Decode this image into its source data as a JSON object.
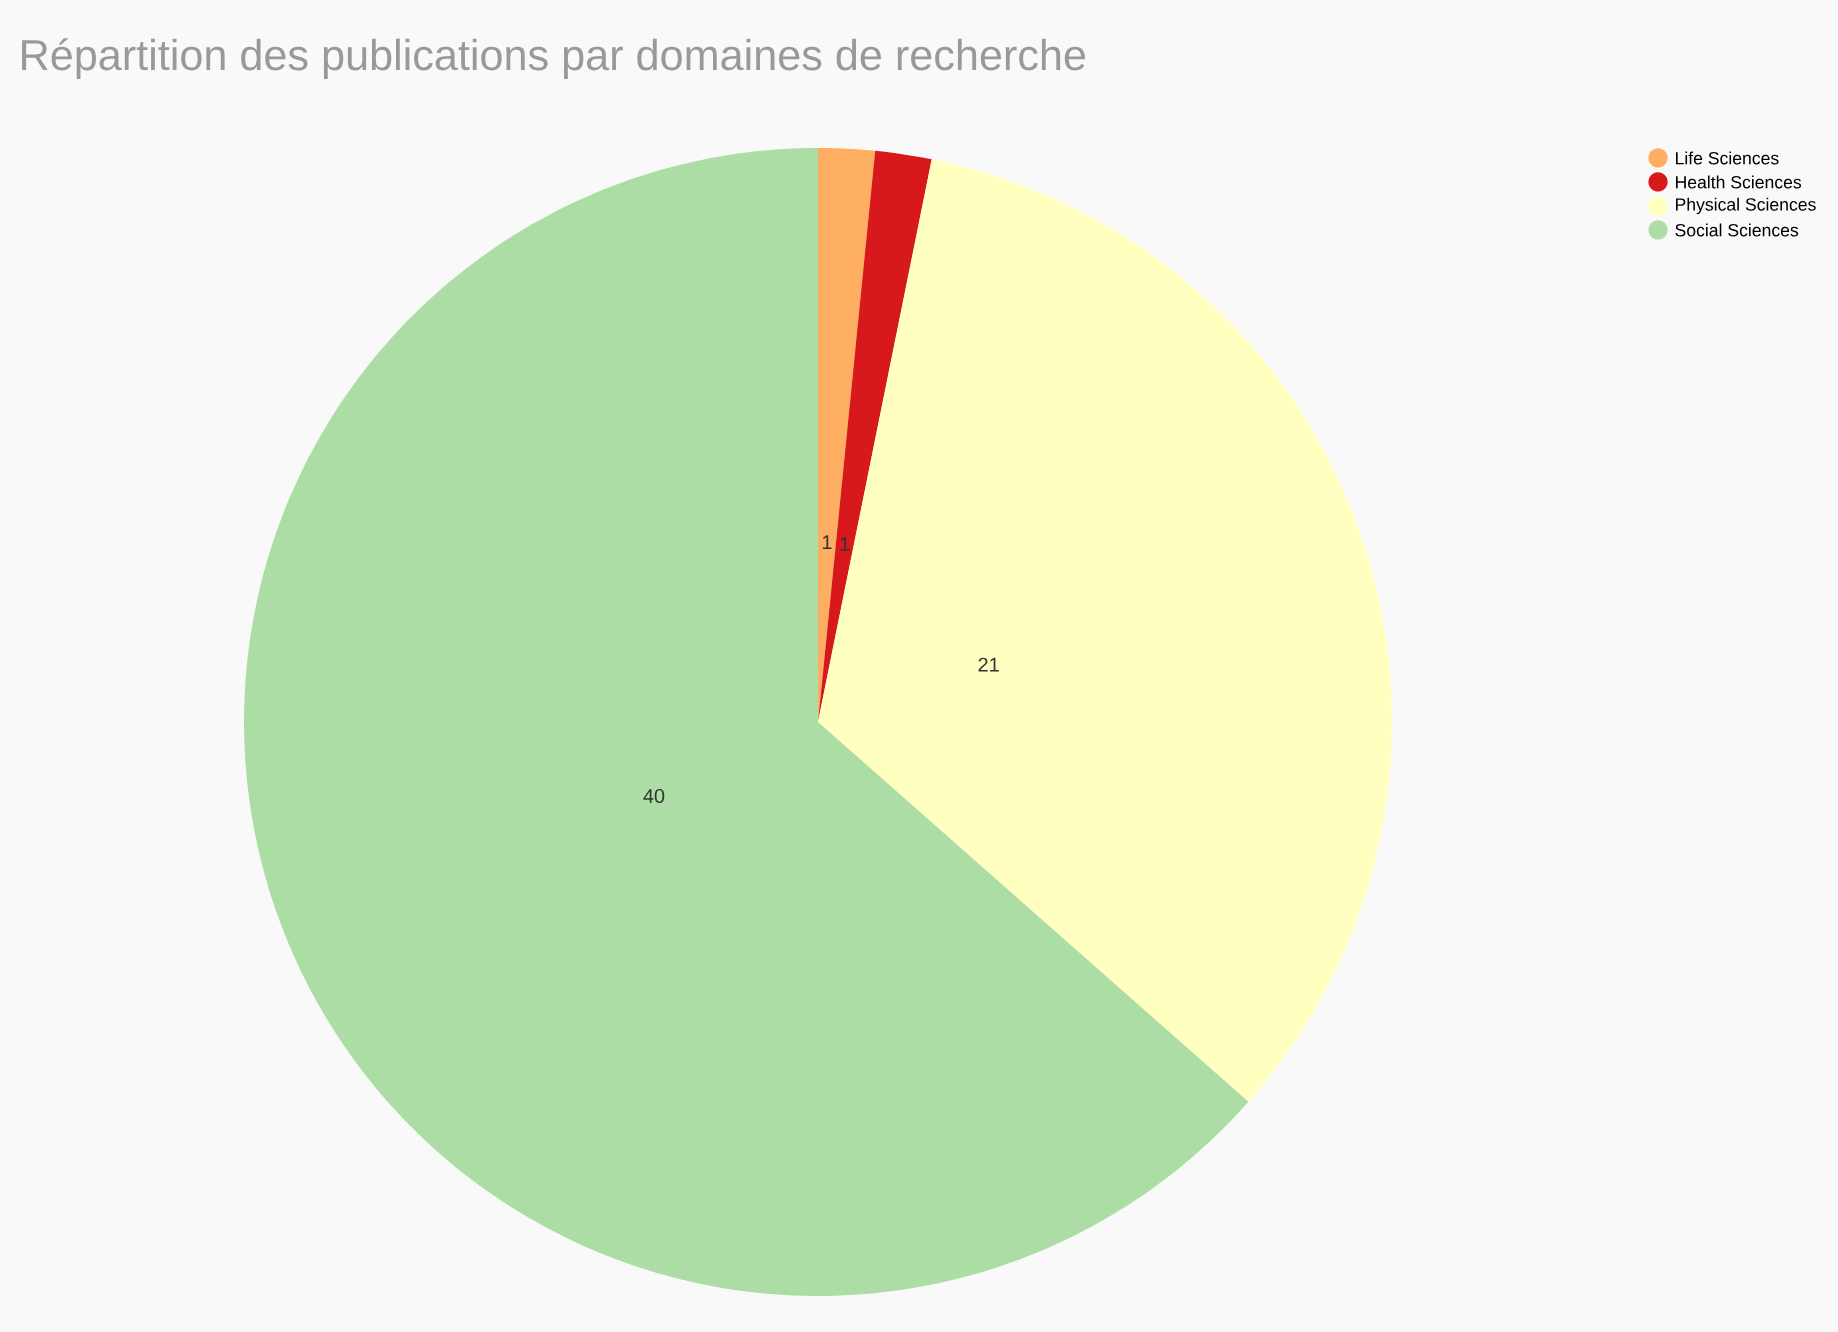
{
  "chart_data": {
    "type": "pie",
    "title": "Répartition des publications par domaines de recherche",
    "categories": [
      "Life Sciences",
      "Health Sciences",
      "Physical Sciences",
      "Social Sciences"
    ],
    "values": [
      1,
      1,
      21,
      40
    ],
    "colors": [
      "#fdae61",
      "#d7191c",
      "#ffffbf",
      "#abdda4"
    ],
    "data_labels": true,
    "legend": "top right"
  }
}
